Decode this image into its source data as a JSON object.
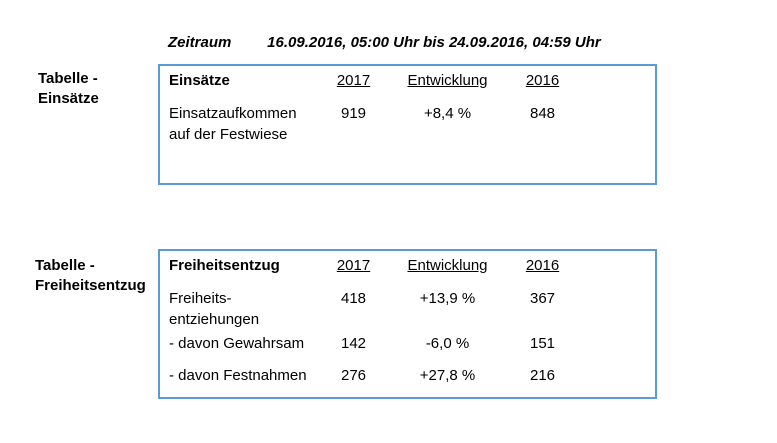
{
  "period": {
    "label": "Zeitraum",
    "value": "16.09.2016, 05:00 Uhr bis 24.09.2016, 04:59 Uhr"
  },
  "colors": {
    "table_border": "#5B9BD5",
    "text": "#000000"
  },
  "tables": [
    {
      "side_label_line1": "Tabelle -",
      "side_label_line2": "Einsätze",
      "title": "Einsätze",
      "columns": [
        "2017",
        "Entwicklung",
        "2016"
      ],
      "rows": [
        {
          "label_line1": "Einsatzaufkommen",
          "label_line2": "auf der Festwiese",
          "y2017": "919",
          "entwicklung": "+8,4 %",
          "y2016": "848"
        }
      ]
    },
    {
      "side_label_line1": "Tabelle -",
      "side_label_line2": "Freiheitsentzug",
      "title": "Freiheitsentzug",
      "columns": [
        "2017",
        "Entwicklung",
        "2016"
      ],
      "rows": [
        {
          "label_line1": "Freiheits-",
          "label_line2": "entziehungen",
          "y2017": "418",
          "entwicklung": "+13,9 %",
          "y2016": "367"
        },
        {
          "label_line1": "- davon Gewahrsam",
          "label_line2": "",
          "y2017": "142",
          "entwicklung": "-6,0 %",
          "y2016": "151"
        },
        {
          "label_line1": "- davon Festnahmen",
          "label_line2": "",
          "y2017": "276",
          "entwicklung": "+27,8 %",
          "y2016": "216"
        }
      ]
    }
  ]
}
